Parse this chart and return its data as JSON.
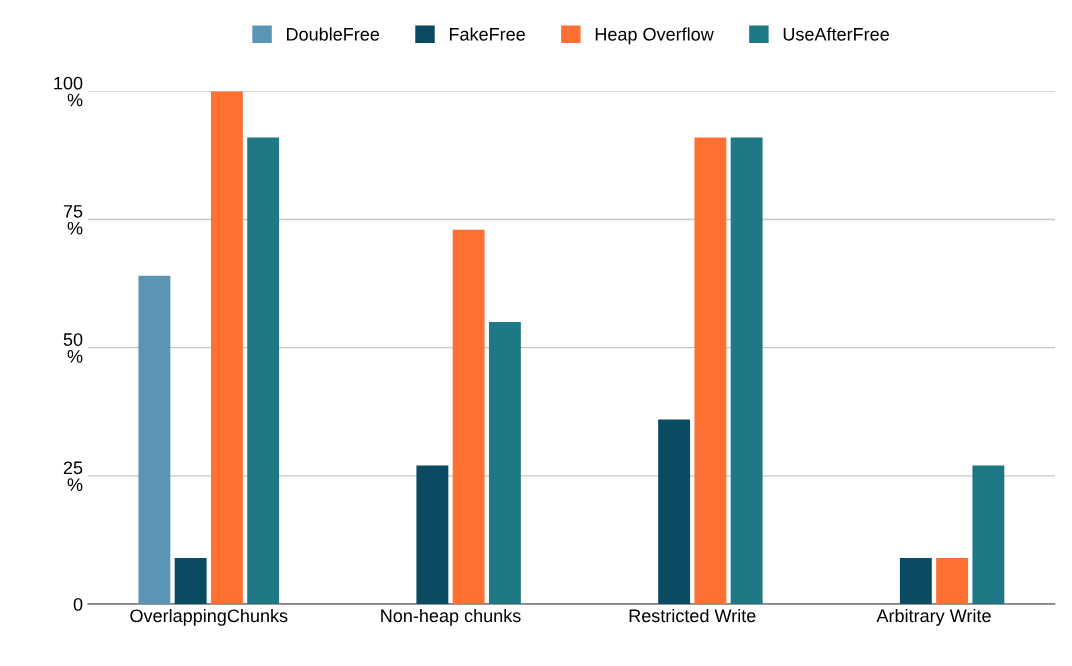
{
  "chart_data": {
    "type": "bar",
    "categories": [
      "OverlappingChunks",
      "Non-heap chunks",
      "Restricted Write",
      "Arbitrary Write"
    ],
    "series": [
      {
        "name": "DoubleFree",
        "color": "#5b95b5",
        "values": [
          64,
          0,
          0,
          0
        ]
      },
      {
        "name": "FakeFree",
        "color": "#0b4a63",
        "values": [
          9,
          27,
          36,
          9
        ]
      },
      {
        "name": "Heap Overflow",
        "color": "#ff7033",
        "values": [
          100,
          73,
          91,
          9
        ]
      },
      {
        "name": "UseAfterFree",
        "color": "#1f7886",
        "values": [
          91,
          55,
          91,
          27
        ]
      }
    ],
    "ylim": [
      0,
      100
    ],
    "yticks": [
      {
        "value": 0,
        "label": "0"
      },
      {
        "value": 25,
        "label": "25\n%"
      },
      {
        "value": 50,
        "label": "50\n%"
      },
      {
        "value": 75,
        "label": "75\n%"
      },
      {
        "value": 100,
        "label": "100\n%"
      }
    ],
    "grid": "y",
    "legend": "top"
  }
}
